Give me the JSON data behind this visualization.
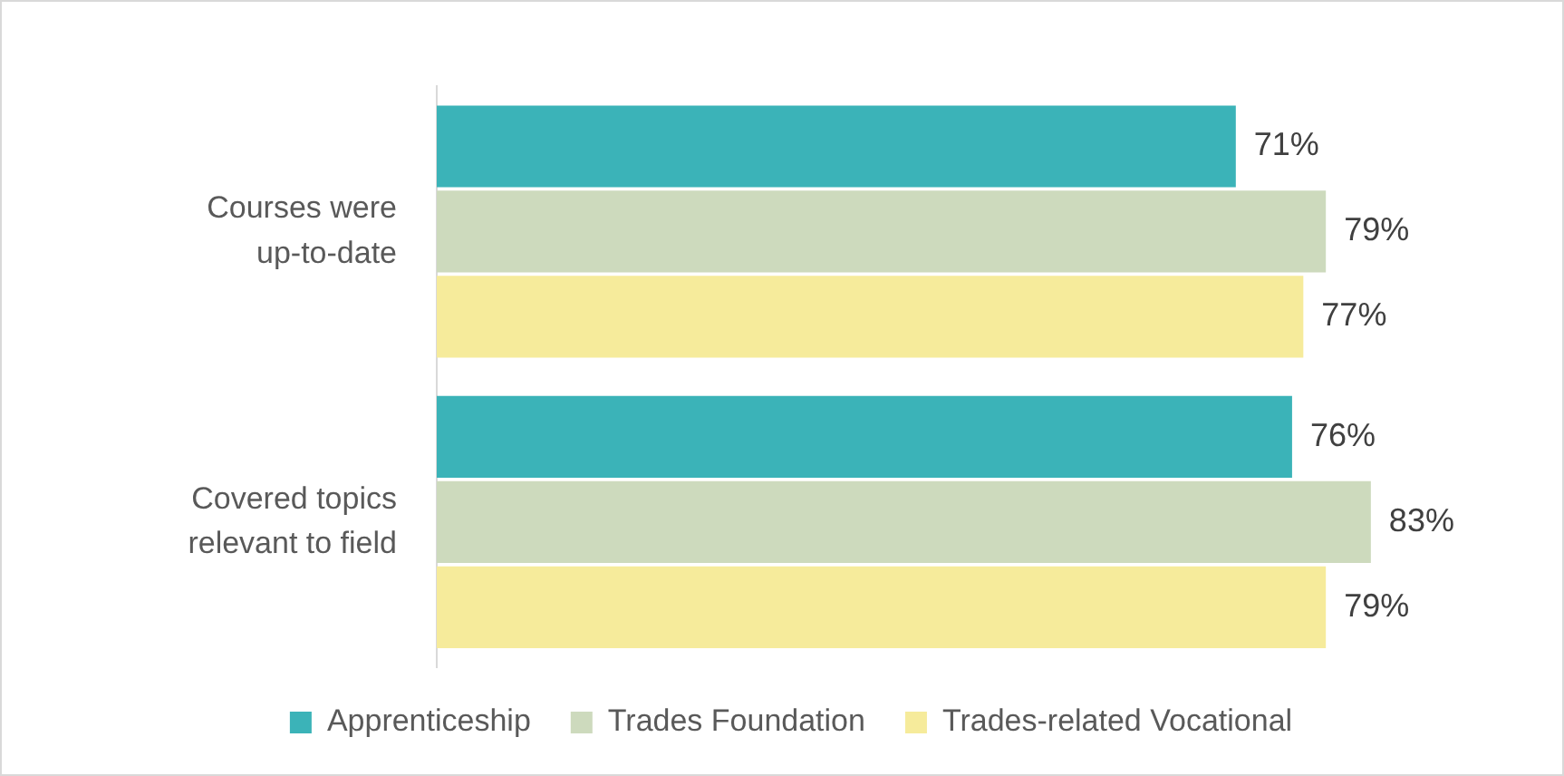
{
  "chart_data": {
    "type": "bar",
    "orientation": "horizontal",
    "categories": [
      "Courses were up-to-date",
      "Covered topics relevant to field"
    ],
    "series": [
      {
        "name": "Apprenticeship",
        "color": "#3bb3b8",
        "values": [
          71,
          76
        ],
        "value_labels": [
          "71%",
          "76%"
        ]
      },
      {
        "name": "Trades Foundation",
        "color": "#cddabd",
        "values": [
          79,
          83
        ],
        "value_labels": [
          "79%",
          "83%"
        ]
      },
      {
        "name": "Trades-related Vocational",
        "color": "#f6eb9b",
        "values": [
          77,
          79
        ],
        "value_labels": [
          "77%",
          "79%"
        ]
      }
    ],
    "xlim": [
      0,
      100
    ],
    "tick_labels": "y",
    "legend": "bottom"
  }
}
